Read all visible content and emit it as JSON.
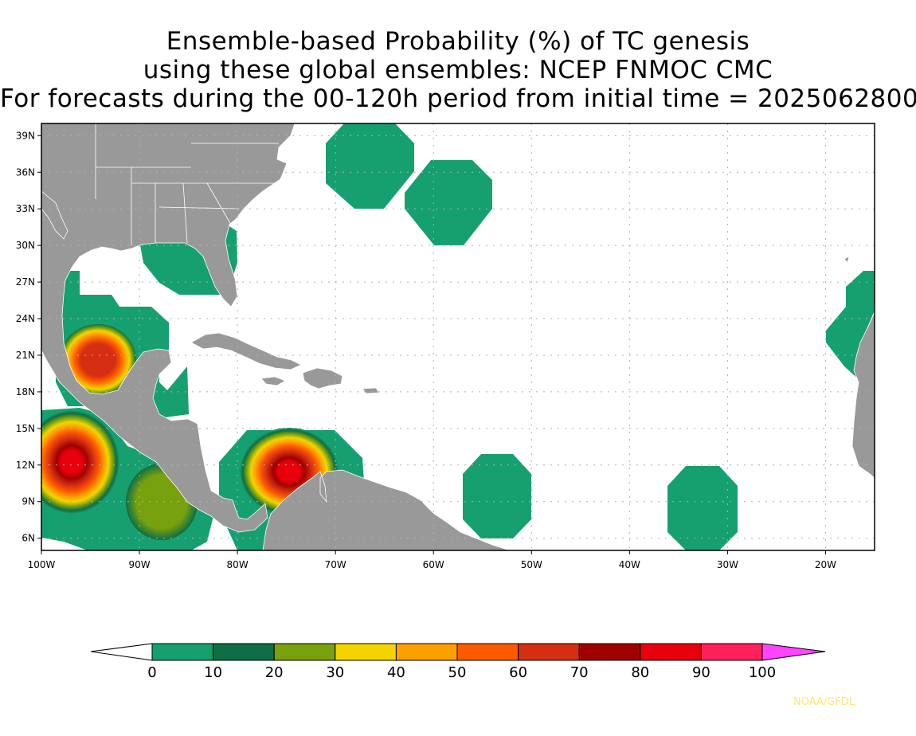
{
  "title": {
    "line1": "Ensemble-based Probability (%) of TC genesis",
    "line2": "using these global ensembles:   NCEP FNMOC CMC",
    "line3": "For forecasts during the 00-120h period from initial time = 2025062800"
  },
  "map": {
    "lon_range": [
      -100,
      -15
    ],
    "lat_range": [
      5,
      40
    ],
    "x_ticks": [
      {
        "lon": -100,
        "label": "100W"
      },
      {
        "lon": -90,
        "label": "90W"
      },
      {
        "lon": -80,
        "label": "80W"
      },
      {
        "lon": -70,
        "label": "70W"
      },
      {
        "lon": -60,
        "label": "60W"
      },
      {
        "lon": -50,
        "label": "50W"
      },
      {
        "lon": -40,
        "label": "40W"
      },
      {
        "lon": -30,
        "label": "30W"
      },
      {
        "lon": -20,
        "label": "20W"
      }
    ],
    "y_ticks": [
      {
        "lat": 6,
        "label": "6N"
      },
      {
        "lat": 9,
        "label": "9N"
      },
      {
        "lat": 12,
        "label": "12N"
      },
      {
        "lat": 15,
        "label": "15N"
      },
      {
        "lat": 18,
        "label": "18N"
      },
      {
        "lat": 21,
        "label": "21N"
      },
      {
        "lat": 24,
        "label": "24N"
      },
      {
        "lat": 27,
        "label": "27N"
      },
      {
        "lat": 30,
        "label": "30N"
      },
      {
        "lat": 33,
        "label": "33N"
      },
      {
        "lat": 36,
        "label": "36N"
      },
      {
        "lat": 39,
        "label": "39N"
      }
    ],
    "land_color": "#999999",
    "ocean_color": "#ffffff",
    "grid": "dotted",
    "probability_centers": [
      {
        "region": "Bay of Campeche",
        "lon": -94,
        "lat": 20.5,
        "max_pct": 70
      },
      {
        "region": "Eastern Pacific off Guatemala",
        "lon": -97,
        "lat": 12.3,
        "max_pct": 90
      },
      {
        "region": "Eastern Pacific off Central America",
        "lon": -88,
        "lat": 9.2,
        "max_pct": 30
      },
      {
        "region": "Southwest Caribbean",
        "lon": -74.5,
        "lat": 12.5,
        "max_pct": 90
      },
      {
        "region": "Central Atlantic 54W",
        "lon": -54,
        "lat": 9.5,
        "max_pct": 10
      },
      {
        "region": "Eastern Atlantic 32W",
        "lon": -32,
        "lat": 8.5,
        "max_pct": 10
      },
      {
        "region": "Western Atlantic 67W",
        "lon": -66.5,
        "lat": 37,
        "max_pct": 10
      },
      {
        "region": "Western Atlantic 58W",
        "lon": -58,
        "lat": 33.5,
        "max_pct": 10
      },
      {
        "region": "Off West Africa",
        "lon": -17,
        "lat": 23,
        "max_pct": 10
      }
    ]
  },
  "colorbar": {
    "levels": [
      "0",
      "10",
      "20",
      "30",
      "40",
      "50",
      "60",
      "70",
      "80",
      "90",
      "100"
    ],
    "colors": [
      "#16a06f",
      "#0e6e45",
      "#78a10f",
      "#f2d500",
      "#fca000",
      "#fd5a00",
      "#d52f13",
      "#a00000",
      "#e8000c",
      "#ff1f5a"
    ],
    "under_color": "#ffffff",
    "over_color": "#ff44ff"
  },
  "credit": "NOAA/GFDL"
}
